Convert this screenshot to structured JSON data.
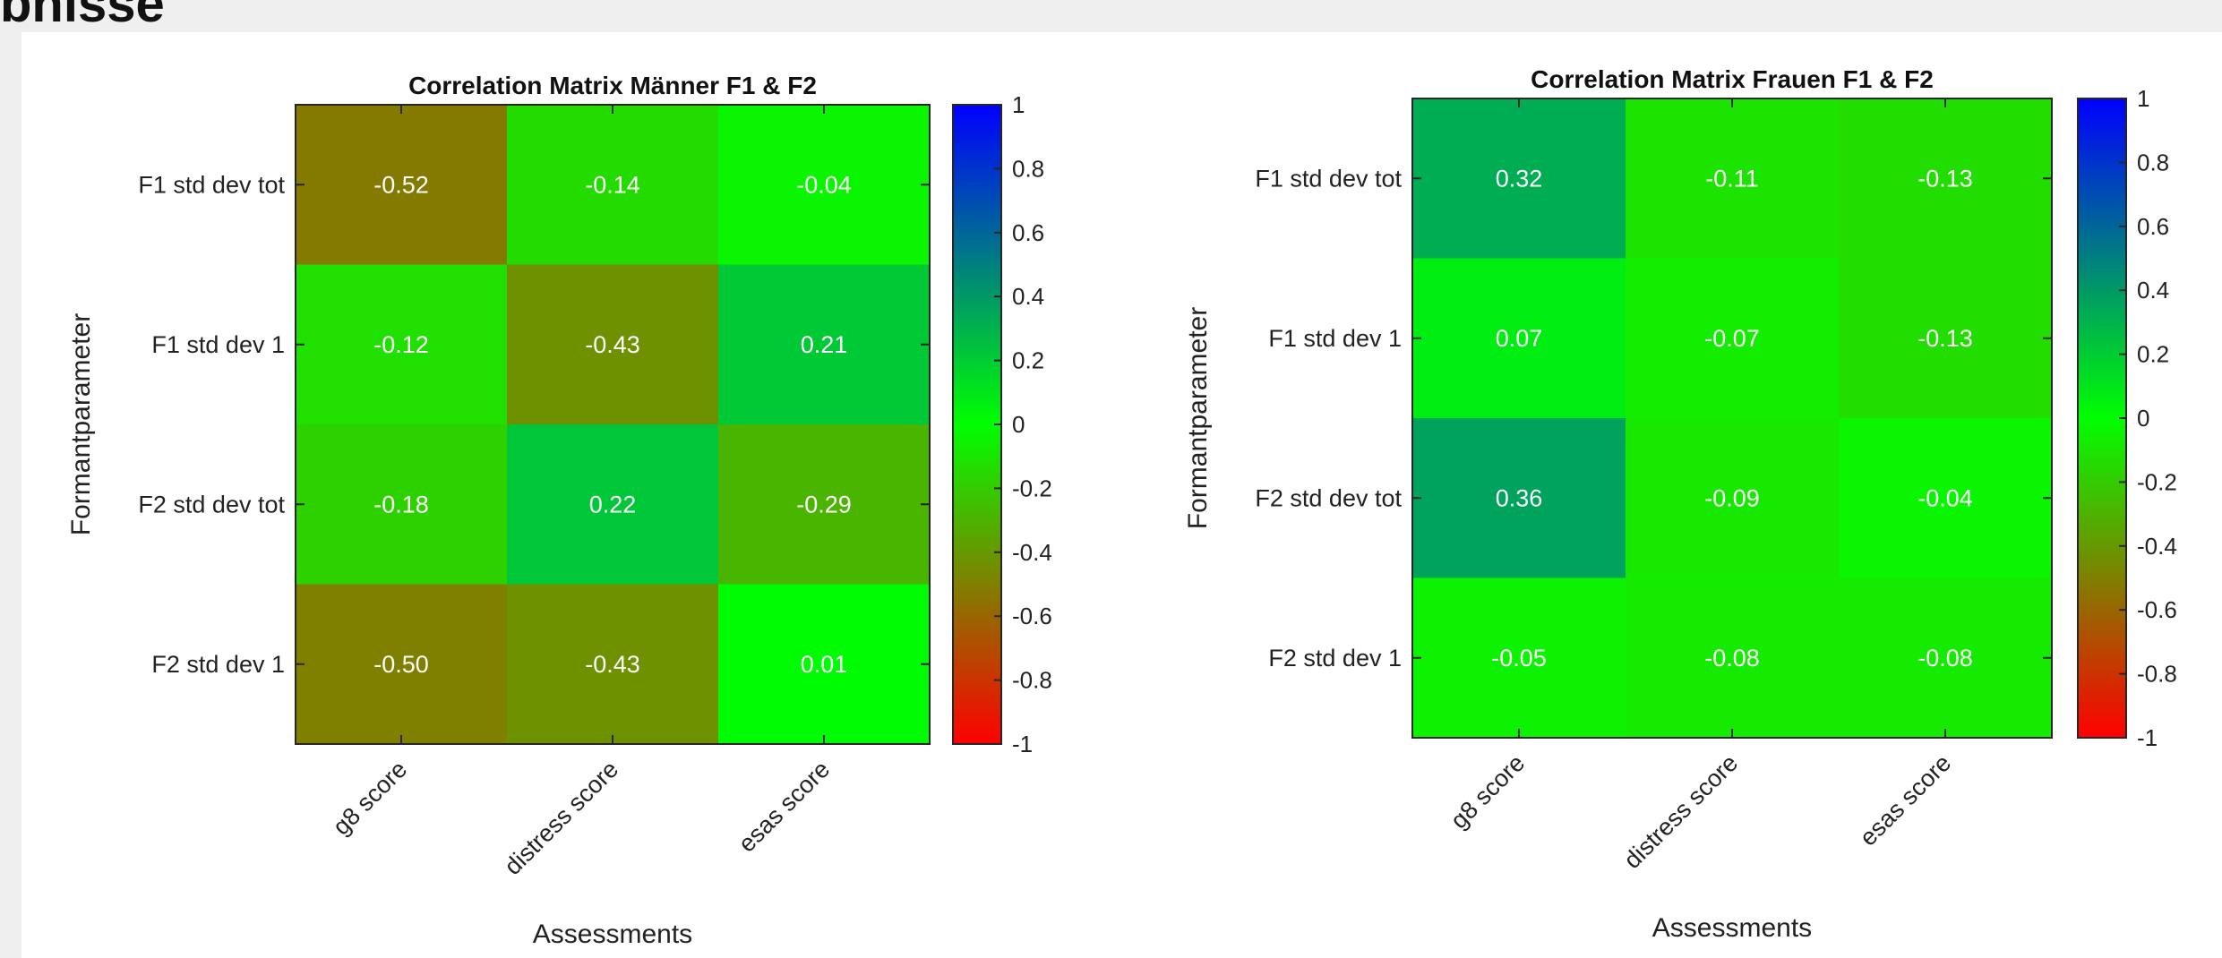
{
  "page": {
    "heading": "bnisse"
  },
  "chart_data": [
    {
      "type": "heatmap",
      "title": "Correlation Matrix Männer F1 & F2",
      "xlabel": "Assessments",
      "ylabel": "Formantparameter",
      "x_categories": [
        "g8 score",
        "distress score",
        "esas score"
      ],
      "y_categories": [
        "F1 std dev tot",
        "F1 std dev 1",
        "F2 std dev tot",
        "F2 std dev 1"
      ],
      "values": [
        [
          -0.52,
          -0.14,
          -0.04
        ],
        [
          -0.12,
          -0.43,
          0.21
        ],
        [
          -0.18,
          0.22,
          -0.29
        ],
        [
          -0.5,
          -0.43,
          0.01
        ]
      ],
      "value_labels": [
        [
          "-0.52",
          "-0.14",
          "-0.04"
        ],
        [
          "-0.12",
          "-0.43",
          "0.21"
        ],
        [
          "-0.18",
          "0.22",
          "-0.29"
        ],
        [
          "-0.50",
          "-0.43",
          "0.01"
        ]
      ],
      "colorbar": {
        "range": [
          -1,
          1
        ],
        "ticks": [
          1,
          0.8,
          0.6,
          0.4,
          0.2,
          0,
          -0.2,
          -0.4,
          -0.6,
          -0.8,
          -1
        ],
        "tick_labels": [
          "1",
          "0.8",
          "0.6",
          "0.4",
          "0.2",
          "0",
          "-0.2",
          "-0.4",
          "-0.6",
          "-0.8",
          "-1"
        ],
        "colormap": {
          "low": "#ff0000",
          "mid": "#00ff00",
          "high": "#0000ff"
        }
      }
    },
    {
      "type": "heatmap",
      "title": "Correlation Matrix Frauen F1 & F2",
      "xlabel": "Assessments",
      "ylabel": "Formantparameter",
      "x_categories": [
        "g8 score",
        "distress score",
        "esas score"
      ],
      "y_categories": [
        "F1 std dev tot",
        "F1 std dev 1",
        "F2 std dev tot",
        "F2 std dev 1"
      ],
      "values": [
        [
          0.32,
          -0.11,
          -0.13
        ],
        [
          0.07,
          -0.07,
          -0.13
        ],
        [
          0.36,
          -0.09,
          -0.04
        ],
        [
          -0.05,
          -0.08,
          -0.08
        ]
      ],
      "value_labels": [
        [
          "0.32",
          "-0.11",
          "-0.13"
        ],
        [
          "0.07",
          "-0.07",
          "-0.13"
        ],
        [
          "0.36",
          "-0.09",
          "-0.04"
        ],
        [
          "-0.05",
          "-0.08",
          "-0.08"
        ]
      ],
      "colorbar": {
        "range": [
          -1,
          1
        ],
        "ticks": [
          1,
          0.8,
          0.6,
          0.4,
          0.2,
          0,
          -0.2,
          -0.4,
          -0.6,
          -0.8,
          -1
        ],
        "tick_labels": [
          "1",
          "0.8",
          "0.6",
          "0.4",
          "0.2",
          "0",
          "-0.2",
          "-0.4",
          "-0.6",
          "-0.8",
          "-1"
        ],
        "colormap": {
          "low": "#ff0000",
          "mid": "#00ff00",
          "high": "#0000ff"
        }
      }
    }
  ]
}
